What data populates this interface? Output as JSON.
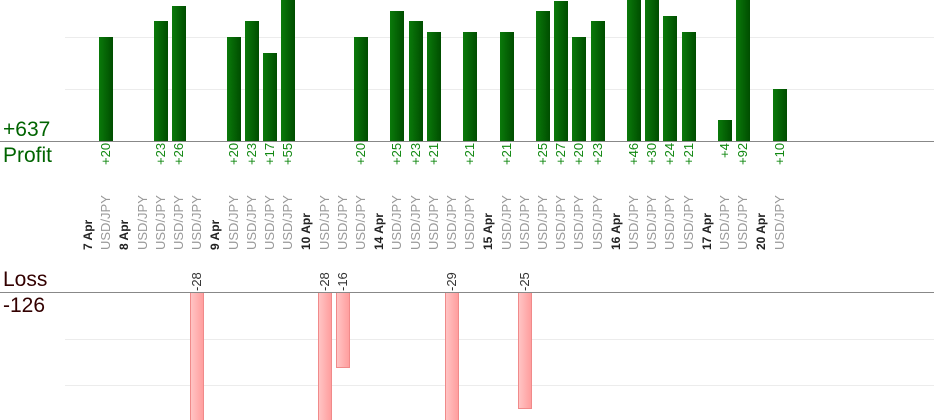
{
  "chart_data": {
    "type": "bar",
    "profit_label": "Profit",
    "profit_total": "+637",
    "loss_label": "Loss",
    "loss_total": "-126",
    "colors": {
      "profit": "#006400",
      "profit_text": "#118811",
      "loss": "#ffaaaa",
      "loss_title": "#330000"
    },
    "groups": [
      {
        "date": "7 Apr",
        "trades": [
          {
            "pair": "USD/JPY",
            "value": 20,
            "label": "+20"
          }
        ]
      },
      {
        "date": "8 Apr",
        "trades": [
          {
            "pair": "USD/JPY",
            "value": null,
            "label": ""
          },
          {
            "pair": "USD/JPY",
            "value": 23,
            "label": "+23"
          },
          {
            "pair": "USD/JPY",
            "value": 26,
            "label": "+26"
          },
          {
            "pair": "USD/JPY",
            "value": -28,
            "label": "-28"
          }
        ]
      },
      {
        "date": "9 Apr",
        "trades": [
          {
            "pair": "USD/JPY",
            "value": 20,
            "label": "+20"
          },
          {
            "pair": "USD/JPY",
            "value": 23,
            "label": "+23"
          },
          {
            "pair": "USD/JPY",
            "value": 17,
            "label": "+17"
          },
          {
            "pair": "USD/JPY",
            "value": 55,
            "label": "+55"
          }
        ]
      },
      {
        "date": "10 Apr",
        "trades": [
          {
            "pair": "USD/JPY",
            "value": -28,
            "label": "-28"
          },
          {
            "pair": "USD/JPY",
            "value": -16,
            "label": "-16"
          },
          {
            "pair": "USD/JPY",
            "value": 20,
            "label": "+20"
          }
        ]
      },
      {
        "date": "14 Apr",
        "trades": [
          {
            "pair": "USD/JPY",
            "value": 25,
            "label": "+25"
          },
          {
            "pair": "USD/JPY",
            "value": 23,
            "label": "+23"
          },
          {
            "pair": "USD/JPY",
            "value": 21,
            "label": "+21"
          },
          {
            "pair": "USD/JPY",
            "value": -29,
            "label": "-29"
          },
          {
            "pair": "USD/JPY",
            "value": 21,
            "label": "+21"
          }
        ]
      },
      {
        "date": "15 Apr",
        "trades": [
          {
            "pair": "USD/JPY",
            "value": 21,
            "label": "+21"
          },
          {
            "pair": "USD/JPY",
            "value": -25,
            "label": "-25"
          },
          {
            "pair": "USD/JPY",
            "value": 25,
            "label": "+25"
          },
          {
            "pair": "USD/JPY",
            "value": 27,
            "label": "+27"
          },
          {
            "pair": "USD/JPY",
            "value": 20,
            "label": "+20"
          },
          {
            "pair": "USD/JPY",
            "value": 23,
            "label": "+23"
          }
        ]
      },
      {
        "date": "16 Apr",
        "trades": [
          {
            "pair": "USD/JPY",
            "value": 46,
            "label": "+46"
          },
          {
            "pair": "USD/JPY",
            "value": 30,
            "label": "+30"
          },
          {
            "pair": "USD/JPY",
            "value": 24,
            "label": "+24"
          },
          {
            "pair": "USD/JPY",
            "value": 21,
            "label": "+21"
          }
        ]
      },
      {
        "date": "17 Apr",
        "trades": [
          {
            "pair": "USD/JPY",
            "value": 4,
            "label": "+4"
          },
          {
            "pair": "USD/JPY",
            "value": 92,
            "label": "+92"
          }
        ]
      },
      {
        "date": "20 Apr",
        "trades": [
          {
            "pair": "USD/JPY",
            "value": 10,
            "label": "+10"
          }
        ]
      }
    ],
    "grid": true
  }
}
